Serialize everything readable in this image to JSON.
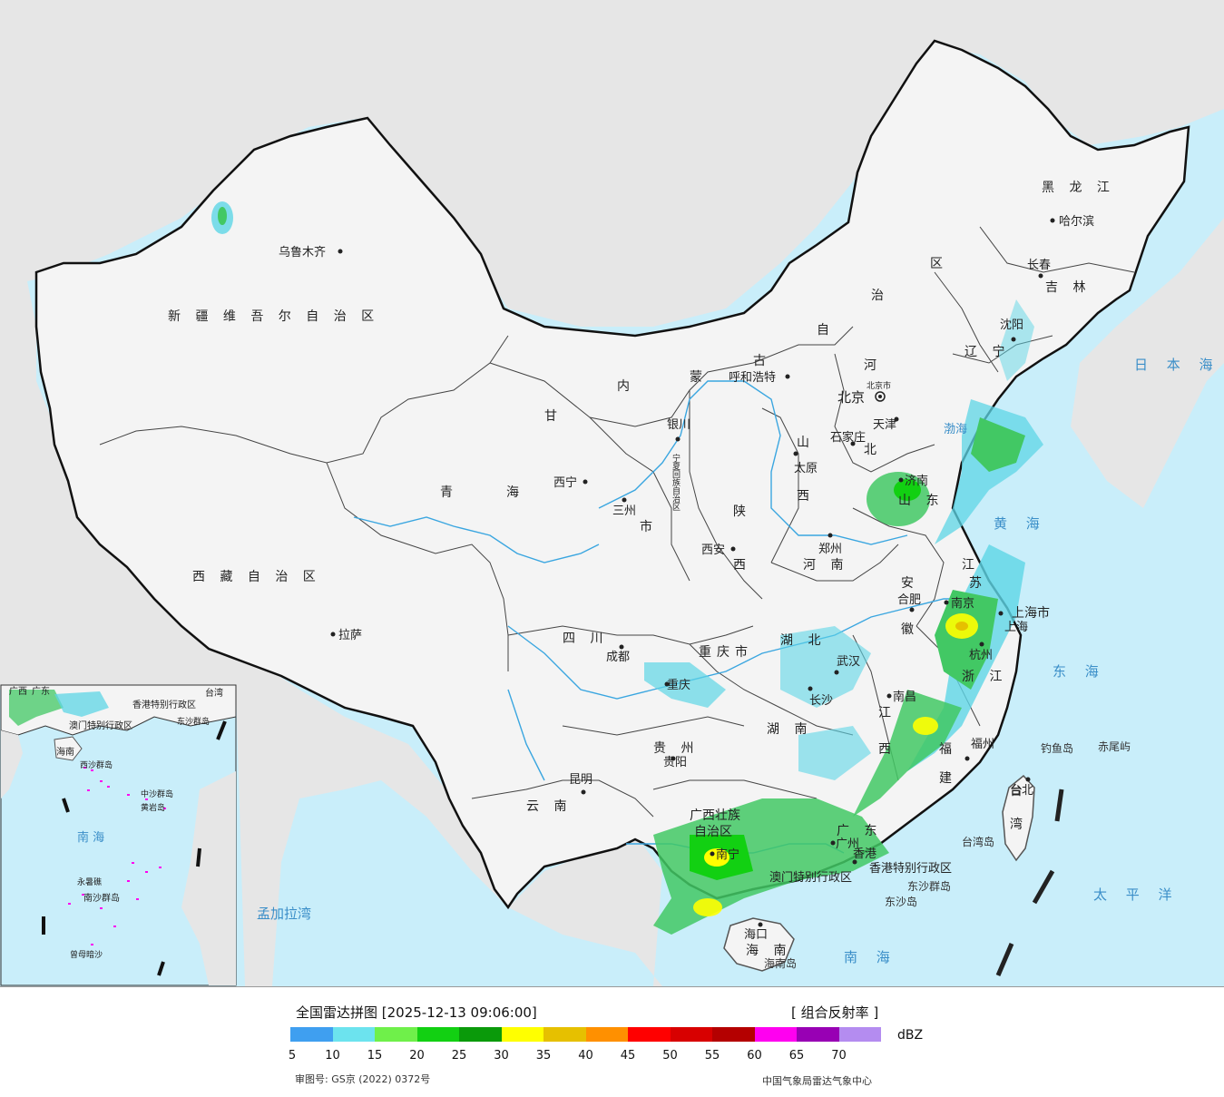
{
  "colors": {
    "ocean": "#c9eefa",
    "land_outside": "#e6e6e6",
    "china_land": "#f4f4f4",
    "border": "#111111",
    "river": "#3aa6e0",
    "echo_green": "#42c864",
    "echo_cyan": "#5ed6e6"
  },
  "provinces": {
    "xinjiang": "新 疆 维 吾 尔 自 治 区",
    "xizang": "西 藏 自 治 区",
    "qinghai_1": "青",
    "qinghai_2": "海",
    "gansu": "甘",
    "nmg_1": "内",
    "nmg_2": "蒙",
    "nmg_3": "古",
    "nmg_4": "自",
    "nmg_5": "治",
    "nmg_6": "区",
    "heilongjiang": "黑 龙 江",
    "jilin": "吉 林",
    "liaoning": "辽 宁",
    "hebei_1": "河",
    "hebei_2": "北",
    "shanxi_1": "山",
    "shanxi_2": "西",
    "shaanxi_1": "陕",
    "shaanxi_2": "西",
    "shandong": "山 东",
    "henan": "河 南",
    "jiangsu_1": "江",
    "jiangsu_2": "苏",
    "anhui_1": "安",
    "anhui_2": "徽",
    "sichuan": "四 川",
    "chongqing": "重庆市",
    "hubei": "湖 北",
    "hunan": "湖 南",
    "jiangxi_1": "江",
    "jiangxi_2": "西",
    "zhejiang": "浙 江",
    "fujian_1": "福",
    "fujian_2": "建",
    "guizhou": "贵 州",
    "yunnan": "云 南",
    "guangxi_1": "广西壮族",
    "guangxi_2": "自治区",
    "guangdong": "广 东",
    "hainan": "海 南",
    "taiwan_1": "台",
    "taiwan_2": "湾",
    "shanghai": "上海市",
    "gansu_city": "三州",
    "gansu_2": "市",
    "ningxia": "宁夏回族自治区",
    "hk": "香港特别行政区",
    "macau": "澳门特别行政区",
    "tianjin": "天津"
  },
  "cities": {
    "urumqi": "乌鲁木齐",
    "lhasa": "拉萨",
    "xining": "西宁",
    "lanzhou": "三州",
    "yinchuan": "银川",
    "hohhot": "呼和浩特",
    "beijing": "北京",
    "beijing_small": "北京市",
    "tianjin": "天津",
    "shijiazhuang": "石家庄",
    "taiyuan": "太原",
    "jinan": "济南",
    "zhengzhou": "郑州",
    "xian": "西安",
    "chengdu": "成都",
    "chongqing": "重庆",
    "wuhan": "武汉",
    "hefei": "合肥",
    "nanjing": "南京",
    "shanghai": "上海",
    "hangzhou": "杭州",
    "nanchang": "南昌",
    "changsha": "长沙",
    "fuzhou": "福州",
    "guiyang": "贵阳",
    "kunming": "昆明",
    "nanning": "南宁",
    "guangzhou": "广州",
    "hongkong": "香港",
    "haikou": "海口",
    "taipei": "台北",
    "shenyang": "沈阳",
    "changchun": "长春",
    "harbin": "哈尔滨"
  },
  "seas": {
    "japan_sea": "日 本 海",
    "yellow_sea": "黄 海",
    "east_sea": "东 海",
    "south_sea": "南 海",
    "pacific": "太 平 洋",
    "bengal": "孟加拉湾",
    "bohai": "渤海"
  },
  "islands": {
    "diaoyu": "钓鱼岛",
    "chiwei": "赤尾屿",
    "taiwan_island": "台湾岛",
    "dongsha_group": "东沙群岛",
    "dongsha": "东沙岛",
    "hainan_island": "海南岛"
  },
  "inset": {
    "guangdong": "广东",
    "taiwan": "台湾",
    "hk": "香港特别行政区",
    "macau": "澳门特别行政区",
    "dongsha": "东沙群岛",
    "hainan": "海南",
    "xisha": "西沙群岛",
    "zhongsha": "中沙群岛",
    "huangyan": "黄岩岛",
    "nansha": "南沙群岛",
    "yongshu": "永暑礁",
    "zengmu": "曾母暗沙",
    "south_sea": "南 海",
    "guangxi": "广西"
  },
  "legend": {
    "title": "全国雷达拼图 [2025-12-13 09:06:00]",
    "product": "[ 组合反射率 ]",
    "unit": "dBZ",
    "ticks": [
      "5",
      "10",
      "15",
      "20",
      "25",
      "30",
      "35",
      "40",
      "45",
      "50",
      "55",
      "60",
      "65",
      "70"
    ],
    "colors": [
      "#3f9ff0",
      "#6ce3ee",
      "#6ff04a",
      "#12d012",
      "#0a9a0a",
      "#ffff00",
      "#e6c000",
      "#ff9000",
      "#ff0000",
      "#d80000",
      "#b40000",
      "#ff00f0",
      "#9800b4",
      "#b48cf0"
    ],
    "approval": "审图号: GS京 (2022) 0372号",
    "source": "中国气象局雷达气象中心"
  }
}
